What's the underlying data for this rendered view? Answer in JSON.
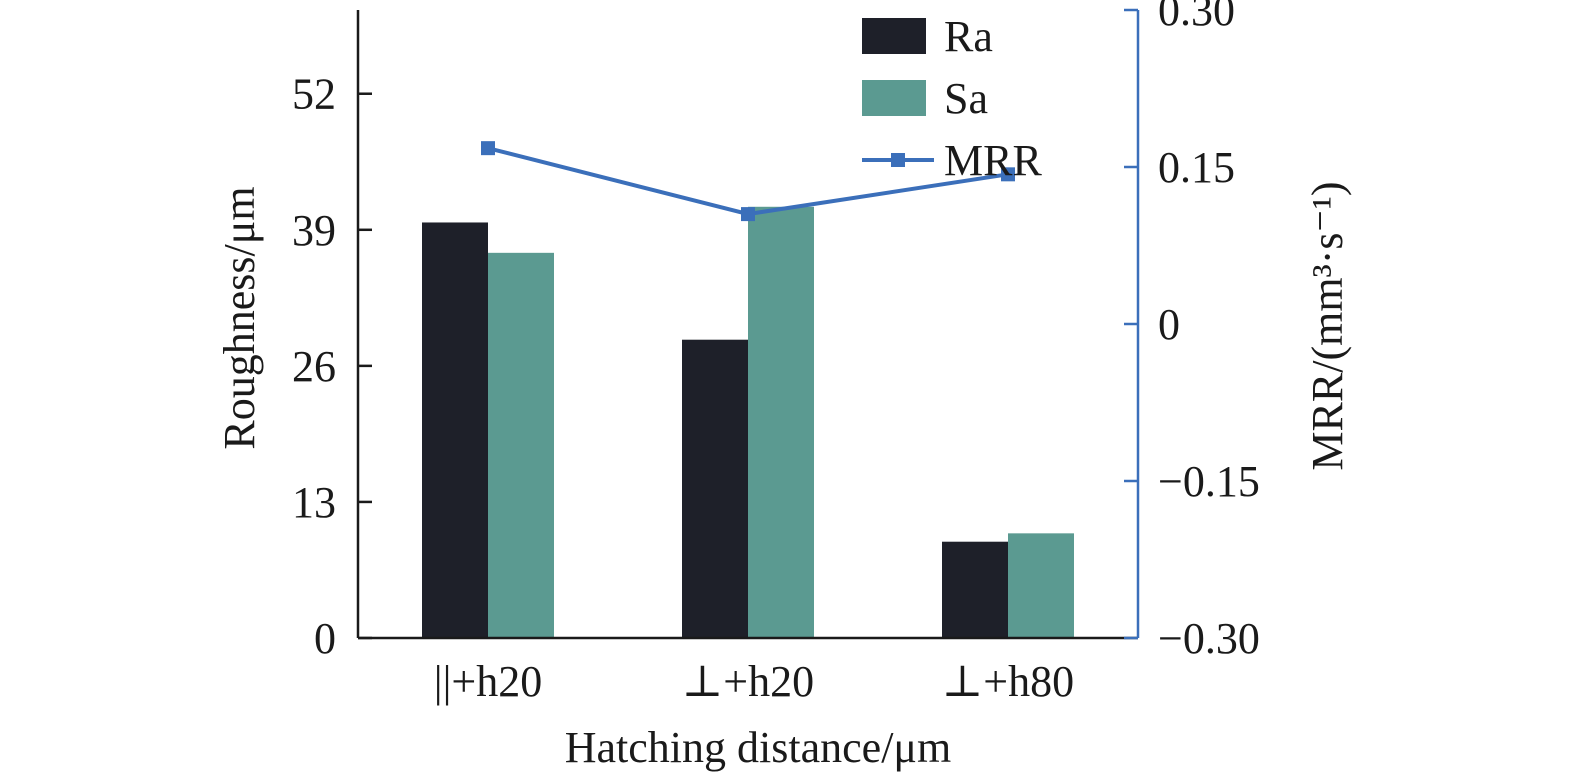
{
  "chart_data": {
    "type": "bar",
    "categories": [
      "||+h20",
      "⊥+h20",
      "⊥+h80"
    ],
    "series": [
      {
        "name": "Ra",
        "axis": "left",
        "kind": "bar",
        "color": "#1e2029",
        "values": [
          39.7,
          28.5,
          9.2
        ]
      },
      {
        "name": "Sa",
        "axis": "left",
        "kind": "bar",
        "color": "#5b9a91",
        "values": [
          36.8,
          41.2,
          10.0
        ]
      },
      {
        "name": "MRR",
        "axis": "right",
        "kind": "line",
        "marker": "square",
        "color": "#3b6fba",
        "values": [
          0.168,
          0.105,
          0.143
        ]
      }
    ],
    "xlabel": "Hatching distance/μm",
    "ylabel_left": "Roughness/μm",
    "ylabel_right": "MRR/(mm³·s⁻¹)",
    "ylim_left": [
      0,
      60
    ],
    "yticks_left": [
      "0",
      "13",
      "26",
      "39",
      "52"
    ],
    "ylim_right": [
      -0.3,
      0.3
    ],
    "yticks_right": [
      "−0.30",
      "−0.15",
      "0",
      "0.15",
      "0.30"
    ],
    "legend_position": "top-right",
    "grid": false,
    "right_axis_color": "#3b6fba"
  }
}
